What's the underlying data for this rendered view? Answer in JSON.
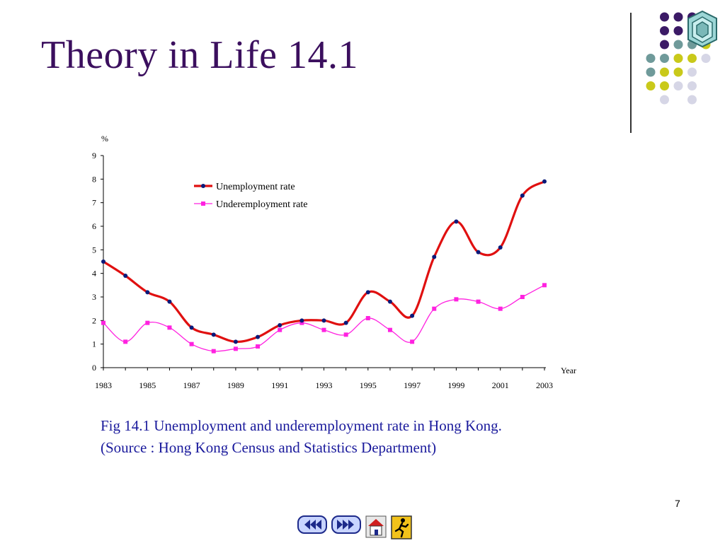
{
  "slide": {
    "title": "Theory in Life 14.1",
    "caption_line1": "Fig 14.1   Unemployment and underemployment rate in Hong Kong.",
    "caption_line2": "(Source : Hong Kong Census and Statistics Department)",
    "page_number": "7"
  },
  "nav": {
    "prev_icon": "rewind-arrows-icon",
    "next_icon": "forward-arrows-icon",
    "home_icon": "home-icon",
    "exit_icon": "exit-running-man-icon"
  },
  "decor": {
    "dot_colors": [
      "#3b1a66",
      "#6f9a9a",
      "#c9c91a",
      "#d6d6e6"
    ]
  },
  "chart_data": {
    "type": "line",
    "title": "",
    "ylabel": "%",
    "xlabel": "Year",
    "ylim": [
      0,
      9
    ],
    "xlim": [
      1983,
      2003
    ],
    "yticks": [
      0,
      1,
      2,
      3,
      4,
      5,
      6,
      7,
      8,
      9
    ],
    "xticks": [
      1983,
      1985,
      1987,
      1989,
      1991,
      1993,
      1995,
      1997,
      1999,
      2001,
      2003
    ],
    "grid": false,
    "legend_position": "top-center",
    "x": [
      1983,
      1984,
      1985,
      1986,
      1987,
      1988,
      1989,
      1990,
      1991,
      1992,
      1993,
      1994,
      1995,
      1996,
      1997,
      1998,
      1999,
      2000,
      2001,
      2002,
      2003
    ],
    "series": [
      {
        "name": "Unemployment rate",
        "color": "#e01010",
        "marker_color": "#0a1a7a",
        "marker": "circle",
        "values": [
          4.5,
          3.9,
          3.2,
          2.8,
          1.7,
          1.4,
          1.1,
          1.3,
          1.8,
          2.0,
          2.0,
          1.9,
          3.2,
          2.8,
          2.2,
          4.7,
          6.2,
          4.9,
          5.1,
          7.3,
          7.9
        ]
      },
      {
        "name": "Underemployment rate",
        "color": "#ff22e0",
        "marker_color": "#ff22e0",
        "marker": "square",
        "values": [
          1.9,
          1.1,
          1.9,
          1.7,
          1.0,
          0.7,
          0.8,
          0.9,
          1.6,
          1.9,
          1.6,
          1.4,
          2.1,
          1.6,
          1.1,
          2.5,
          2.9,
          2.8,
          2.5,
          3.0,
          3.5
        ]
      }
    ]
  }
}
